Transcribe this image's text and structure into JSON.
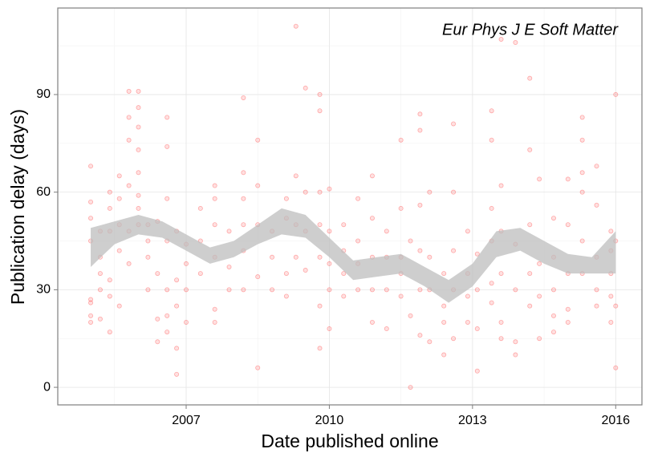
{
  "chart_data": {
    "type": "scatter",
    "annotation": "Eur Phys J E Soft Matter",
    "x_label": "Date published online",
    "y_label": "Publication delay (days)",
    "xlim": [
      2004.31,
      2016.55
    ],
    "ylim": [
      -5.4,
      116.6
    ],
    "xticks": [
      2007,
      2010,
      2013,
      2016
    ],
    "yticks": [
      0,
      30,
      60,
      90
    ],
    "xminor": [
      2005.5,
      2008.5,
      2011.5,
      2014.5
    ],
    "yminor": [
      15,
      45,
      75,
      105
    ],
    "grid": true,
    "color": "#ff0000",
    "band_color": "#bebebe",
    "x": [
      2005.0,
      2005.0,
      2005.0,
      2005.0,
      2005.0,
      2005.0,
      2005.0,
      2005.0,
      2005.2,
      2005.2,
      2005.2,
      2005.2,
      2005.2,
      2005.4,
      2005.4,
      2005.4,
      2005.4,
      2005.4,
      2005.4,
      2005.6,
      2005.6,
      2005.6,
      2005.6,
      2005.6,
      2005.8,
      2005.8,
      2005.8,
      2005.8,
      2005.8,
      2005.8,
      2006.0,
      2006.0,
      2006.0,
      2006.0,
      2006.0,
      2006.0,
      2006.0,
      2006.0,
      2006.2,
      2006.2,
      2006.2,
      2006.2,
      2006.4,
      2006.4,
      2006.4,
      2006.4,
      2006.6,
      2006.6,
      2006.6,
      2006.6,
      2006.6,
      2006.6,
      2006.6,
      2006.8,
      2006.8,
      2006.8,
      2006.8,
      2006.8,
      2007.0,
      2007.0,
      2007.0,
      2007.0,
      2007.3,
      2007.3,
      2007.3,
      2007.6,
      2007.6,
      2007.6,
      2007.6,
      2007.6,
      2007.6,
      2007.9,
      2007.9,
      2007.9,
      2008.2,
      2008.2,
      2008.2,
      2008.2,
      2008.2,
      2008.2,
      2008.5,
      2008.5,
      2008.5,
      2008.5,
      2008.5,
      2008.8,
      2008.8,
      2008.8,
      2009.1,
      2009.1,
      2009.1,
      2009.1,
      2009.3,
      2009.3,
      2009.3,
      2009.3,
      2009.5,
      2009.5,
      2009.5,
      2009.5,
      2009.8,
      2009.8,
      2009.8,
      2009.8,
      2009.8,
      2009.8,
      2009.8,
      2010.0,
      2010.0,
      2010.0,
      2010.0,
      2010.0,
      2010.3,
      2010.3,
      2010.3,
      2010.3,
      2010.6,
      2010.6,
      2010.6,
      2010.6,
      2010.9,
      2010.9,
      2010.9,
      2010.9,
      2010.9,
      2011.2,
      2011.2,
      2011.2,
      2011.2,
      2011.5,
      2011.5,
      2011.5,
      2011.5,
      2011.5,
      2011.7,
      2011.7,
      2011.7,
      2011.9,
      2011.9,
      2011.9,
      2011.9,
      2011.9,
      2011.9,
      2012.1,
      2012.1,
      2012.1,
      2012.1,
      2012.4,
      2012.4,
      2012.4,
      2012.4,
      2012.6,
      2012.6,
      2012.6,
      2012.6,
      2012.6,
      2012.9,
      2012.9,
      2012.9,
      2012.9,
      2013.1,
      2013.1,
      2013.1,
      2013.1,
      2013.4,
      2013.4,
      2013.4,
      2013.4,
      2013.4,
      2013.4,
      2013.6,
      2013.6,
      2013.6,
      2013.6,
      2013.6,
      2013.6,
      2013.9,
      2013.9,
      2013.9,
      2013.9,
      2013.9,
      2014.2,
      2014.2,
      2014.2,
      2014.2,
      2014.2,
      2014.4,
      2014.4,
      2014.4,
      2014.4,
      2014.7,
      2014.7,
      2014.7,
      2014.7,
      2014.7,
      2015.0,
      2015.0,
      2015.0,
      2015.0,
      2015.0,
      2015.3,
      2015.3,
      2015.3,
      2015.3,
      2015.3,
      2015.3,
      2015.6,
      2015.6,
      2015.6,
      2015.6,
      2015.6,
      2015.9,
      2015.9,
      2015.9,
      2015.9,
      2015.9,
      2016.0,
      2016.0,
      2016.0,
      2016.0
    ],
    "values": [
      68,
      57,
      52,
      27,
      26,
      22,
      20,
      45,
      48,
      40,
      35,
      30,
      21,
      60,
      55,
      48,
      33,
      28,
      17,
      65,
      58,
      50,
      42,
      25,
      91,
      83,
      76,
      62,
      48,
      38,
      91,
      86,
      80,
      73,
      66,
      59,
      55,
      50,
      50,
      45,
      40,
      30,
      51,
      35,
      21,
      14,
      83,
      74,
      58,
      45,
      30,
      22,
      17,
      48,
      33,
      25,
      4,
      12,
      44,
      38,
      30,
      20,
      55,
      45,
      35,
      62,
      58,
      50,
      40,
      24,
      20,
      48,
      37,
      30,
      89,
      66,
      58,
      50,
      42,
      30,
      76,
      62,
      50,
      34,
      6,
      48,
      40,
      30,
      58,
      52,
      35,
      28,
      111,
      65,
      50,
      40,
      92,
      60,
      48,
      36,
      90,
      85,
      60,
      50,
      40,
      25,
      12,
      61,
      48,
      38,
      30,
      18,
      50,
      42,
      35,
      28,
      58,
      45,
      38,
      30,
      65,
      52,
      40,
      30,
      20,
      48,
      40,
      30,
      18,
      76,
      55,
      40,
      35,
      28,
      0,
      22,
      45,
      84,
      79,
      56,
      42,
      30,
      16,
      60,
      40,
      30,
      14,
      35,
      25,
      20,
      10,
      81,
      60,
      42,
      30,
      15,
      48,
      35,
      28,
      20,
      41,
      30,
      18,
      5,
      85,
      76,
      55,
      45,
      32,
      26,
      107,
      62,
      48,
      35,
      20,
      15,
      106,
      44,
      30,
      14,
      10,
      95,
      73,
      50,
      35,
      25,
      64,
      38,
      28,
      15,
      52,
      40,
      30,
      22,
      17,
      64,
      50,
      35,
      24,
      20,
      83,
      76,
      66,
      60,
      45,
      35,
      68,
      56,
      40,
      30,
      25,
      48,
      42,
      35,
      28,
      20,
      90,
      45,
      25,
      6
    ],
    "band": {
      "x": [
        2005.0,
        2005.5,
        2006.0,
        2006.5,
        2007.0,
        2007.5,
        2008.0,
        2008.5,
        2009.0,
        2009.5,
        2010.0,
        2010.5,
        2011.0,
        2011.5,
        2012.0,
        2012.5,
        2013.0,
        2013.5,
        2014.0,
        2014.5,
        2015.0,
        2015.5,
        2016.0
      ],
      "lower": [
        37,
        44,
        47,
        46,
        42,
        38,
        40,
        44,
        47,
        46,
        40,
        33,
        34,
        35,
        31,
        26,
        31,
        40,
        42,
        38,
        35,
        35,
        35
      ],
      "upper": [
        49,
        51,
        53,
        51,
        47,
        43,
        45,
        50,
        55,
        53,
        46,
        39,
        40,
        41,
        37,
        33,
        38,
        48,
        49,
        45,
        41,
        40,
        48
      ]
    }
  }
}
